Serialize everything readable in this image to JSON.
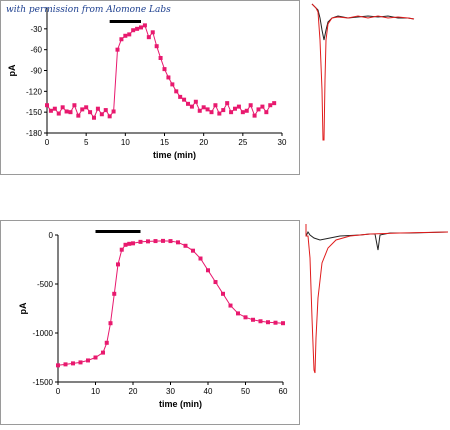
{
  "credit": "with permission from Alomone Labs",
  "chart_data": [
    {
      "type": "scatter",
      "xlabel": "time (min)",
      "ylabel": "pA",
      "xlim": [
        0,
        30
      ],
      "ylim": [
        -180,
        0
      ],
      "xticks": [
        "0",
        "5",
        "10",
        "15",
        "20",
        "25",
        "30"
      ],
      "yticks": [
        "-30",
        "-60",
        "-90",
        "-120",
        "-150",
        "-180"
      ],
      "bar": [
        8,
        12
      ],
      "color": "#e8196e",
      "series": [
        {
          "x": [
            0,
            0.5,
            1,
            1.5,
            2,
            2.5,
            3,
            3.5,
            4,
            4.5,
            5,
            5.5,
            6,
            6.5,
            7,
            7.5,
            8,
            8.5,
            9,
            9.5,
            10,
            10.5,
            11,
            11.5,
            12,
            12.5,
            13,
            13.5,
            14,
            14.5,
            15,
            15.5,
            16,
            16.5,
            17,
            17.5,
            18,
            18.5,
            19,
            19.5,
            20,
            20.5,
            21,
            21.5,
            22,
            22.5,
            23,
            23.5,
            24,
            24.5,
            25,
            25.5,
            26,
            26.5,
            27,
            27.5,
            28,
            28.5,
            29
          ],
          "y": [
            -140,
            -148,
            -145,
            -152,
            -143,
            -149,
            -150,
            -140,
            -155,
            -146,
            -143,
            -150,
            -158,
            -145,
            -153,
            -147,
            -156,
            -149,
            -60,
            -45,
            -40,
            -38,
            -32,
            -30,
            -28,
            -25,
            -42,
            -35,
            -55,
            -72,
            -88,
            -100,
            -110,
            -120,
            -128,
            -132,
            -138,
            -142,
            -135,
            -148,
            -143,
            -146,
            -150,
            -140,
            -152,
            -147,
            -137,
            -150,
            -145,
            -142,
            -150,
            -148,
            -140,
            -155,
            -146,
            -142,
            -150,
            -140,
            -137
          ]
        }
      ]
    },
    {
      "type": "scatter",
      "xlabel": "time (min)",
      "ylabel": "pA",
      "xlim": [
        0,
        60
      ],
      "ylim": [
        -1500,
        0
      ],
      "xticks": [
        "0",
        "10",
        "20",
        "30",
        "40",
        "50",
        "60"
      ],
      "yticks": [
        "0",
        "-500",
        "-1000",
        "-1500"
      ],
      "bar": [
        10,
        22
      ],
      "color": "#e8196e",
      "series": [
        {
          "x": [
            0,
            2,
            4,
            6,
            8,
            10,
            12,
            13,
            14,
            15,
            16,
            17,
            18,
            19,
            20,
            22,
            24,
            26,
            28,
            30,
            32,
            34,
            36,
            38,
            40,
            42,
            44,
            46,
            48,
            50,
            52,
            54,
            56,
            58,
            60
          ],
          "y": [
            -1330,
            -1320,
            -1310,
            -1300,
            -1280,
            -1250,
            -1200,
            -1100,
            -900,
            -600,
            -300,
            -150,
            -100,
            -90,
            -85,
            -70,
            -65,
            -62,
            -60,
            -62,
            -75,
            -110,
            -160,
            -240,
            -360,
            -480,
            -600,
            -720,
            -800,
            -840,
            -865,
            -880,
            -890,
            -895,
            -900
          ]
        }
      ]
    }
  ],
  "traces": [
    {
      "style": "current-trace-insert",
      "colors": [
        "#e01c1c",
        "#222222"
      ]
    },
    {
      "style": "current-trace-insert",
      "colors": [
        "#e01c1c",
        "#222222"
      ]
    }
  ]
}
